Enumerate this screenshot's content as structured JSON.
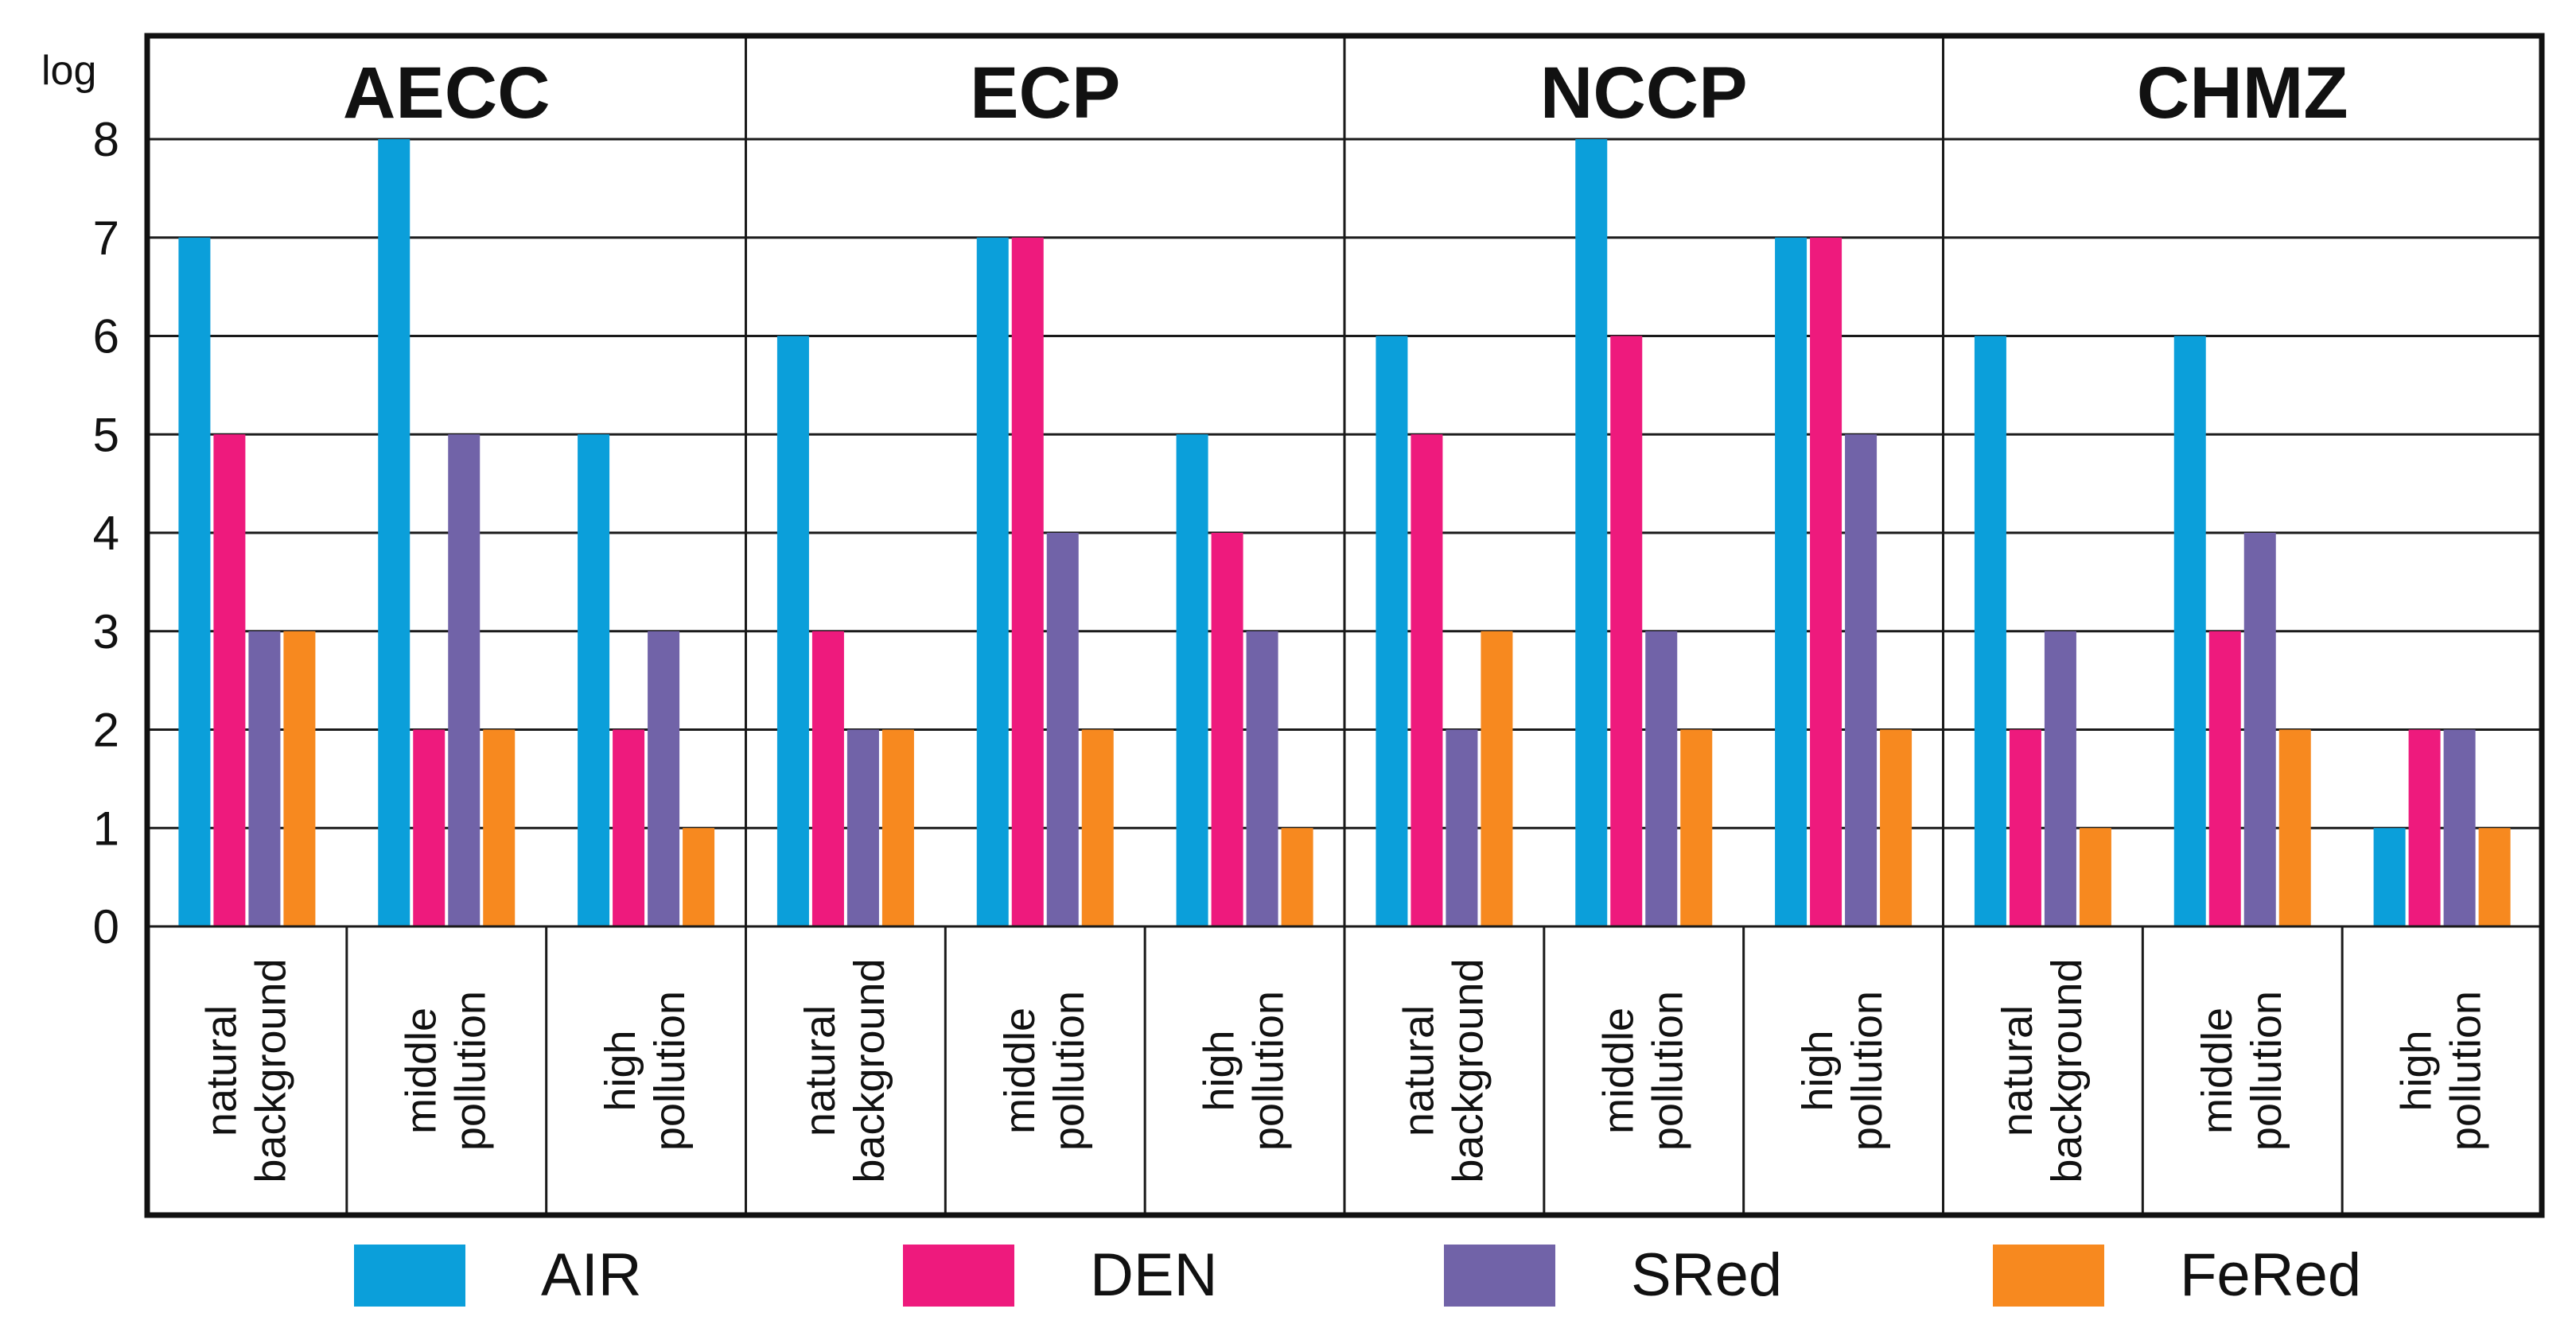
{
  "chart_data": {
    "type": "bar",
    "ylabel": "log",
    "ylim": [
      0,
      8
    ],
    "yticks": [
      "0",
      "1",
      "2",
      "3",
      "4",
      "5",
      "6",
      "7",
      "8"
    ],
    "grid": true,
    "legend_position": "bottom",
    "groups": [
      {
        "name": "AECC",
        "categories": [
          {
            "label": [
              "natural",
              "background"
            ],
            "values": [
              7,
              5,
              3,
              3
            ]
          },
          {
            "label": [
              "middle",
              "pollution"
            ],
            "values": [
              8,
              2,
              5,
              2
            ]
          },
          {
            "label": [
              "high",
              "pollution"
            ],
            "values": [
              5,
              2,
              3,
              1
            ]
          }
        ]
      },
      {
        "name": "ECP",
        "categories": [
          {
            "label": [
              "natural",
              "background"
            ],
            "values": [
              6,
              3,
              2,
              2
            ]
          },
          {
            "label": [
              "middle",
              "pollution"
            ],
            "values": [
              7,
              7,
              4,
              2
            ]
          },
          {
            "label": [
              "high",
              "pollution"
            ],
            "values": [
              5,
              4,
              3,
              1
            ]
          }
        ]
      },
      {
        "name": "NCCP",
        "categories": [
          {
            "label": [
              "natural",
              "background"
            ],
            "values": [
              6,
              5,
              2,
              3
            ]
          },
          {
            "label": [
              "middle",
              "pollution"
            ],
            "values": [
              8,
              6,
              3,
              2
            ]
          },
          {
            "label": [
              "high",
              "pollution"
            ],
            "values": [
              7,
              7,
              5,
              2
            ]
          }
        ]
      },
      {
        "name": "CHMZ",
        "categories": [
          {
            "label": [
              "natural",
              "background"
            ],
            "values": [
              6,
              2,
              3,
              1
            ]
          },
          {
            "label": [
              "middle",
              "pollution"
            ],
            "values": [
              6,
              3,
              4,
              2
            ]
          },
          {
            "label": [
              "high",
              "pollution"
            ],
            "values": [
              1,
              2,
              2,
              1
            ]
          }
        ]
      }
    ],
    "series": [
      {
        "name": "AIR",
        "color": "#0b9fda"
      },
      {
        "name": "DEN",
        "color": "#ee1a7d"
      },
      {
        "name": "SRed",
        "color": "#7163a8"
      },
      {
        "name": "FeRed",
        "color": "#f7891f"
      }
    ]
  }
}
